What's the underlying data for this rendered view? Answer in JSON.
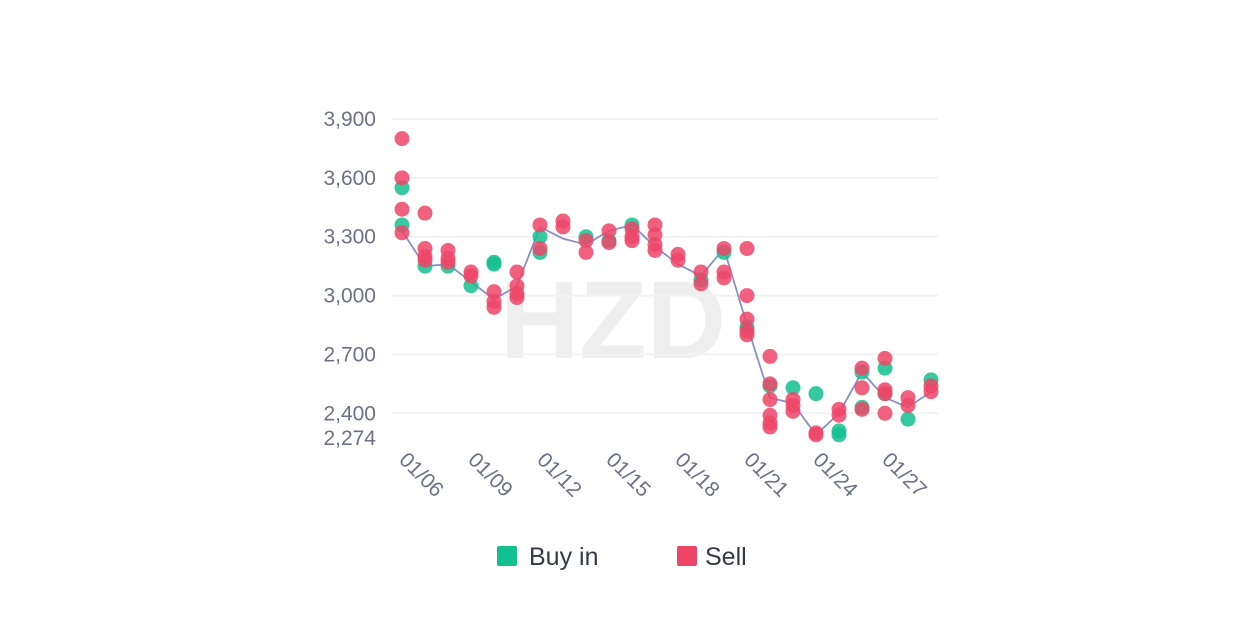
{
  "chart_data": {
    "type": "scatter",
    "watermark": "HZD",
    "grid": true,
    "legend_position": "bottom",
    "y_ticks": [
      3900,
      3600,
      3300,
      3000,
      2700,
      2400,
      2274
    ],
    "y_tick_labels": [
      "3,900",
      "3,600",
      "3,300",
      "3,000",
      "2,700",
      "2,400",
      "2,274"
    ],
    "ylim": [
      2274,
      3900
    ],
    "x_ticks": [
      "01/06",
      "01/09",
      "01/12",
      "01/15",
      "01/18",
      "01/21",
      "01/24",
      "01/27"
    ],
    "xlim": [
      0,
      23
    ],
    "line": {
      "color": "#8a8fc7",
      "x": [
        0,
        1,
        2,
        3,
        4,
        5,
        6,
        7,
        8,
        9,
        10,
        11,
        12,
        13,
        14,
        15,
        16,
        17,
        18,
        19,
        20,
        21,
        22,
        23
      ],
      "y": [
        3330,
        3150,
        3160,
        3070,
        2980,
        3050,
        3350,
        3290,
        3260,
        3330,
        3360,
        3250,
        3160,
        3100,
        3240,
        2850,
        2480,
        2450,
        2290,
        2400,
        2610,
        2480,
        2430,
        2510
      ]
    },
    "series": [
      {
        "name": "Buy in",
        "color": "#13c08f",
        "points": [
          [
            0,
            3550
          ],
          [
            0,
            3360
          ],
          [
            1,
            3150
          ],
          [
            2,
            3150
          ],
          [
            3,
            3050
          ],
          [
            4,
            3170
          ],
          [
            4,
            3160
          ],
          [
            6,
            3300
          ],
          [
            6,
            3220
          ],
          [
            8,
            3300
          ],
          [
            9,
            3280
          ],
          [
            10,
            3360
          ],
          [
            13,
            3080
          ],
          [
            14,
            3220
          ],
          [
            15,
            2840
          ],
          [
            16,
            2540
          ],
          [
            17,
            2530
          ],
          [
            18,
            2500
          ],
          [
            19,
            2290
          ],
          [
            19,
            2310
          ],
          [
            20,
            2430
          ],
          [
            20,
            2610
          ],
          [
            21,
            2630
          ],
          [
            21,
            2500
          ],
          [
            22,
            2370
          ],
          [
            23,
            2570
          ]
        ]
      },
      {
        "name": "Sell",
        "color": "#ee4567",
        "points": [
          [
            0,
            3800
          ],
          [
            0,
            3600
          ],
          [
            0,
            3440
          ],
          [
            0,
            3320
          ],
          [
            1,
            3420
          ],
          [
            1,
            3240
          ],
          [
            1,
            3200
          ],
          [
            1,
            3180
          ],
          [
            2,
            3230
          ],
          [
            2,
            3190
          ],
          [
            2,
            3170
          ],
          [
            3,
            3120
          ],
          [
            3,
            3100
          ],
          [
            4,
            3020
          ],
          [
            4,
            2970
          ],
          [
            4,
            2940
          ],
          [
            5,
            3120
          ],
          [
            5,
            3050
          ],
          [
            5,
            3010
          ],
          [
            5,
            2990
          ],
          [
            6,
            3360
          ],
          [
            6,
            3240
          ],
          [
            7,
            3380
          ],
          [
            7,
            3350
          ],
          [
            8,
            3280
          ],
          [
            8,
            3220
          ],
          [
            9,
            3330
          ],
          [
            9,
            3270
          ],
          [
            10,
            3340
          ],
          [
            10,
            3300
          ],
          [
            10,
            3280
          ],
          [
            11,
            3360
          ],
          [
            11,
            3310
          ],
          [
            11,
            3260
          ],
          [
            11,
            3230
          ],
          [
            12,
            3210
          ],
          [
            12,
            3180
          ],
          [
            13,
            3120
          ],
          [
            13,
            3060
          ],
          [
            14,
            3120
          ],
          [
            14,
            3090
          ],
          [
            14,
            3240
          ],
          [
            15,
            3240
          ],
          [
            15,
            3000
          ],
          [
            15,
            2880
          ],
          [
            15,
            2820
          ],
          [
            15,
            2800
          ],
          [
            16,
            2690
          ],
          [
            16,
            2550
          ],
          [
            16,
            2470
          ],
          [
            16,
            2390
          ],
          [
            16,
            2350
          ],
          [
            16,
            2330
          ],
          [
            17,
            2470
          ],
          [
            17,
            2440
          ],
          [
            17,
            2410
          ],
          [
            18,
            2300
          ],
          [
            18,
            2290
          ],
          [
            19,
            2420
          ],
          [
            19,
            2390
          ],
          [
            20,
            2630
          ],
          [
            20,
            2530
          ],
          [
            20,
            2420
          ],
          [
            21,
            2680
          ],
          [
            21,
            2520
          ],
          [
            21,
            2500
          ],
          [
            21,
            2400
          ],
          [
            22,
            2480
          ],
          [
            22,
            2440
          ],
          [
            23,
            2540
          ],
          [
            23,
            2510
          ]
        ]
      }
    ]
  }
}
